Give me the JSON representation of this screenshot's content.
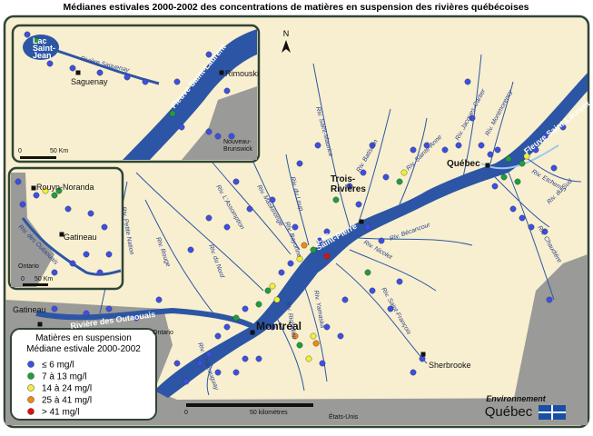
{
  "title": "Médianes estivales 2000-2002 des concentrations de matières en suspension des rivières québécoises",
  "legend": {
    "title": [
      "Matières en suspension",
      "Médiane estivale 2000-2002"
    ],
    "classes": [
      {
        "label": "≤ 6 mg/l",
        "color": "#3c4fe4"
      },
      {
        "label": "7 à 13 mg/l",
        "color": "#1f9e3c"
      },
      {
        "label": "14 à 24 mg/l",
        "color": "#f2ef3a"
      },
      {
        "label": "25 à 41 mg/l",
        "color": "#f08a12"
      },
      {
        "label": "> 41 mg/l",
        "color": "#e01010"
      }
    ]
  },
  "places": {
    "quebec": "Québec",
    "trois_rivieres": [
      "Trois-",
      "Rivières"
    ],
    "montreal": "Montréal",
    "sherbrooke": "Sherbrooke",
    "gatineau": "Gatineau",
    "ontario": "Ontario",
    "etats_unis": "États-Unis",
    "lac_saint_pierre": [
      "Lac",
      "Saint-Pierre"
    ],
    "riviere_outaouais": "Rivière des Outaouais",
    "fleuve": "Fleuve Saint-Laurent"
  },
  "rivers": [
    "Riv. Saint-Maurice",
    "Riv. Batiscan",
    "Riv. Sainte-Anne",
    "Riv. Jacques-Cartier",
    "Riv. Montmorency",
    "Riv. L'Assomption",
    "Riv. Maskinongé",
    "Riv. du Loup",
    "Riv. Bayonne",
    "Riv. Bécancour",
    "Riv. Nicolet",
    "Riv. Saint-François",
    "Riv. Chaudière",
    "Riv. Etchemin",
    "Riv. du Sud",
    "Riv. Yamaska",
    "Riv. Richelieu",
    "Riv. Châteauguay",
    "Riv. du Nord",
    "Riv. Rouge",
    "Riv. Petite Nation"
  ],
  "inset_north": {
    "lac": [
      "Lac",
      "Saint-",
      "Jean"
    ],
    "riviere": "Rivière Saguenay",
    "saguenay": "Saguenay",
    "rimouski": "Rimouski",
    "fleuve": "Fleuve Saint-Laurent",
    "nb": [
      "Nouveau-",
      "Brunswick"
    ],
    "scale": [
      "0",
      "50 Km"
    ]
  },
  "inset_west": {
    "rouyn": "Rouyn-Noranda",
    "gatineau": "Gatineau",
    "ontario": "Ontario",
    "riviere": "Riv. des Outaouais",
    "scale": [
      "0",
      "50 Km"
    ]
  },
  "scale": [
    "0",
    "50 kilomètres"
  ],
  "north": "N",
  "logo": [
    "Environnement",
    "Québec"
  ]
}
